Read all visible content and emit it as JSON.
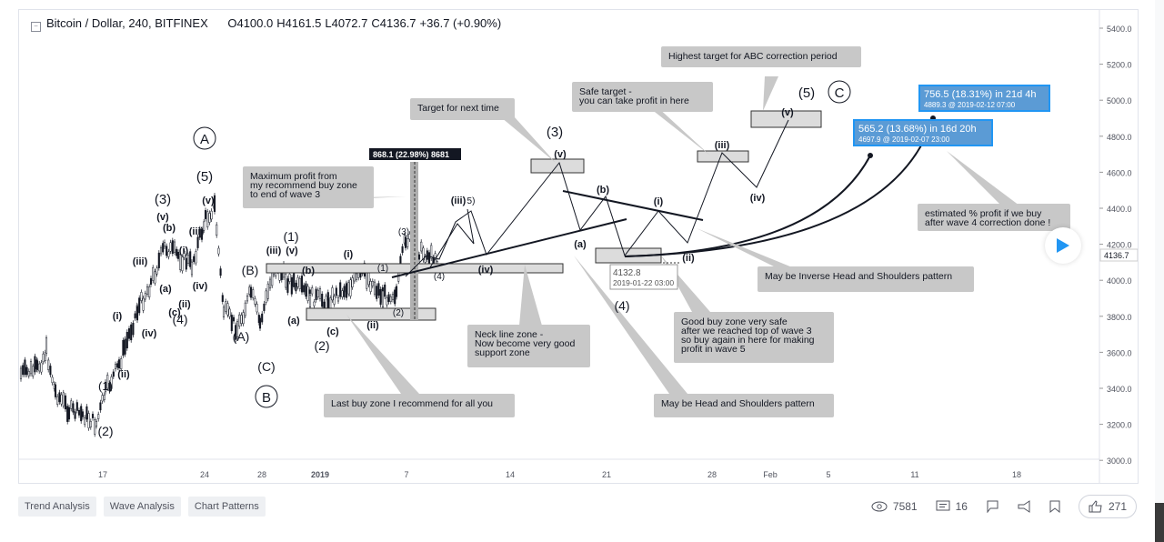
{
  "header": {
    "symbol": "Bitcoin / Dollar, 240, BITFINEX",
    "open": "O4100.0",
    "high": "H4161.5",
    "low": "L4072.7",
    "close": "C4136.7",
    "change": "+36.7 (+0.90%)"
  },
  "price_axis": [
    "5400.0",
    "5200.0",
    "5000.0",
    "4800.0",
    "4600.0",
    "4400.0",
    "4200.0",
    "4000.0",
    "3800.0",
    "3600.0",
    "3400.0",
    "3200.0",
    "3000.0"
  ],
  "current_price": "4136.7",
  "time_axis": [
    "17",
    "24",
    "28",
    "2019",
    "7",
    "14",
    "21",
    "28",
    "Feb",
    "5",
    "11",
    "18"
  ],
  "notes": {
    "highest_target": "Highest target for ABC correction period",
    "safe_target_1": "Safe target -",
    "safe_target_2": "you can take profit in here",
    "next_target": "Target for next time",
    "max_profit_1": "Maximum profit from",
    "max_profit_2": "my recommend buy zone",
    "max_profit_3": "to end of wave 3",
    "neck_1": "Neck line zone -",
    "neck_2": "Now become very good",
    "neck_3": " support zone",
    "last_buy": "Last buy zone I recommend for all you",
    "head_shoulders": "May be Head and Shoulders pattern",
    "inverse_hs": "May be Inverse Head and Shoulders pattern",
    "good_buy_1": "Good buy zone very safe",
    "good_buy_2": "after we reached top of wave 3",
    "good_buy_3": "so buy again in here for making",
    "good_buy_4": "profit in wave 5",
    "estimated_1": "estimated % profit if we buy",
    "estimated_2": "after wave 4 correction done !"
  },
  "measures": {
    "m1_line1": "565.2 (13.68%) in 16d 20h",
    "m1_line2": "4697.9  @ 2019-02-07  23:00",
    "m2_line1": "756.5 (18.31%) in 21d 4h",
    "m2_line2": "4889.3  @ 2019-02-12  07:00",
    "m3": "868.1 (22.98%) 8681",
    "price_label_1": "4132.8",
    "price_label_2": "2019-01-22 03:00"
  },
  "waves": {
    "A_circle": "A",
    "B_circle": "B",
    "C_circle": "C",
    "w5": "(5)",
    "w3": "(3)",
    "w1": "(1)",
    "w2": "(2)",
    "w4": "(4)",
    "wv": "(v)",
    "wiii": "(iii)",
    "wiv": "(iv)",
    "wi": "(i)",
    "wii": "(ii)",
    "wa": "(a)",
    "wb": "(b)",
    "wc": "(c)",
    "wA": "(A)",
    "wB": "(B)",
    "wC": "(C)",
    "n1": "(1)",
    "n2": "(2)",
    "n3": "(3)",
    "n4": "(4)",
    "w5small": "5)"
  },
  "tags": [
    "Trend Analysis",
    "Wave Analysis",
    "Chart Patterns"
  ],
  "stats": {
    "views": "7581",
    "comments": "16",
    "likes": "271"
  },
  "colors": {
    "up": "#131722",
    "note_bg": "#c8c8c8",
    "measure_bg": "#4a90d9",
    "measure_border": "#2196f3"
  }
}
